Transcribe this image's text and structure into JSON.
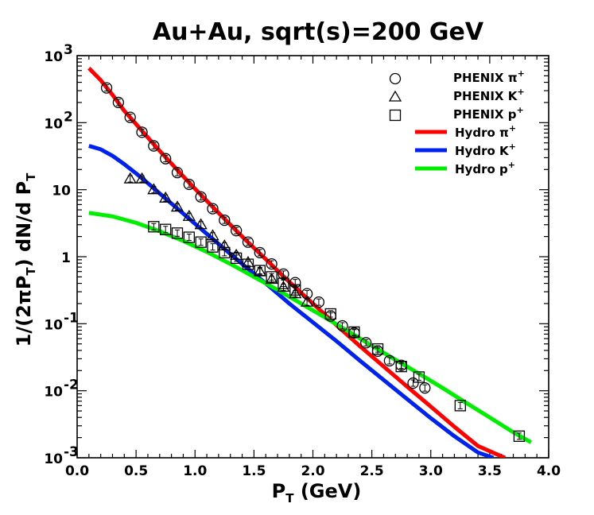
{
  "chart_data": {
    "type": "scatter",
    "title": "Au+Au, sqrt(s)=200 GeV",
    "xlabel": {
      "main": "P",
      "sub": "T",
      "rest": " (GeV)"
    },
    "ylabel": {
      "p1": "1/(2πP",
      "s1": "T",
      "p2": ") dN/d P",
      "s2": "T"
    },
    "xlim": [
      0.0,
      4.0
    ],
    "ylim": [
      0.001,
      1000
    ],
    "yscale": "log",
    "grid": false,
    "legend_position": "top-right",
    "x_ticks": [
      {
        "value": 0.0,
        "label": "0.0"
      },
      {
        "value": 0.5,
        "label": "0.5"
      },
      {
        "value": 1.0,
        "label": "1.0"
      },
      {
        "value": 1.5,
        "label": "1.5"
      },
      {
        "value": 2.0,
        "label": "2.0"
      },
      {
        "value": 2.5,
        "label": "2.5"
      },
      {
        "value": 3.0,
        "label": "3.0"
      },
      {
        "value": 3.5,
        "label": "3.5"
      },
      {
        "value": 4.0,
        "label": "4.0"
      }
    ],
    "y_ticks": [
      {
        "value": 0.001,
        "base": "10",
        "exp": "-3"
      },
      {
        "value": 0.01,
        "base": "10",
        "exp": "-2"
      },
      {
        "value": 0.1,
        "base": "10",
        "exp": "-1"
      },
      {
        "value": 1,
        "base": "1",
        "exp": ""
      },
      {
        "value": 10,
        "base": "10",
        "exp": ""
      },
      {
        "value": 100,
        "base": "10",
        "exp": "2"
      },
      {
        "value": 1000,
        "base": "10",
        "exp": "3"
      }
    ],
    "series": [
      {
        "name": "PHENIX π",
        "sup": "+",
        "kind": "points",
        "marker": "circle",
        "x": [
          0.25,
          0.35,
          0.45,
          0.55,
          0.65,
          0.75,
          0.85,
          0.95,
          1.05,
          1.15,
          1.25,
          1.35,
          1.45,
          1.55,
          1.65,
          1.75,
          1.85,
          1.95,
          2.05,
          2.15,
          2.25,
          2.35,
          2.45,
          2.55,
          2.65,
          2.75,
          2.85,
          2.95
        ],
        "y": [
          330,
          200,
          120,
          72,
          45,
          29,
          18,
          12,
          7.8,
          5.2,
          3.5,
          2.45,
          1.65,
          1.15,
          0.78,
          0.55,
          0.41,
          0.28,
          0.21,
          0.13,
          0.093,
          0.073,
          0.052,
          0.039,
          0.028,
          0.024,
          0.013,
          0.011
        ]
      },
      {
        "name": "PHENIX K",
        "sup": "+",
        "kind": "points",
        "marker": "triangle",
        "x": [
          0.45,
          0.55,
          0.65,
          0.75,
          0.85,
          0.95,
          1.05,
          1.15,
          1.25,
          1.35,
          1.45,
          1.55,
          1.65,
          1.75,
          1.85,
          1.95
        ],
        "y": [
          14.5,
          14.5,
          10.0,
          7.5,
          5.5,
          4.0,
          3.0,
          2.05,
          1.45,
          1.05,
          0.82,
          0.6,
          0.46,
          0.35,
          0.28,
          0.21
        ]
      },
      {
        "name": "PHENIX p",
        "sup": "+",
        "kind": "points",
        "marker": "square",
        "x": [
          0.65,
          0.75,
          0.85,
          0.95,
          1.05,
          1.15,
          1.25,
          1.35,
          1.45,
          1.55,
          1.65,
          1.75,
          1.85,
          2.15,
          2.35,
          2.55,
          2.75,
          2.9,
          3.25,
          3.75
        ],
        "y": [
          2.8,
          2.55,
          2.25,
          1.95,
          1.65,
          1.4,
          1.15,
          0.95,
          0.77,
          0.62,
          0.5,
          0.4,
          0.32,
          0.14,
          0.075,
          0.042,
          0.023,
          0.016,
          0.006,
          0.0021
        ]
      },
      {
        "name": "Hydro π",
        "sup": "+",
        "kind": "line",
        "color": "#ff0000",
        "x": [
          0.1,
          0.2,
          0.3,
          0.4,
          0.5,
          0.6,
          0.7,
          0.8,
          0.9,
          1.0,
          1.1,
          1.2,
          1.3,
          1.4,
          1.5,
          1.6,
          1.7,
          1.8,
          1.9,
          2.0,
          2.2,
          2.4,
          2.6,
          2.8,
          3.0,
          3.2,
          3.4,
          3.6,
          3.63
        ],
        "y": [
          650,
          430,
          260,
          150,
          95,
          60,
          38,
          24.5,
          15.8,
          10.3,
          6.8,
          4.5,
          3.0,
          2.0,
          1.35,
          0.92,
          0.62,
          0.42,
          0.29,
          0.2,
          0.095,
          0.046,
          0.023,
          0.0115,
          0.0058,
          0.0029,
          0.0015,
          0.00105,
          0.001
        ]
      },
      {
        "name": "Hydro K",
        "sup": "+",
        "kind": "line",
        "color": "#0022ee",
        "x": [
          0.1,
          0.2,
          0.3,
          0.4,
          0.5,
          0.6,
          0.7,
          0.8,
          0.9,
          1.0,
          1.2,
          1.4,
          1.6,
          1.8,
          2.0,
          2.2,
          2.4,
          2.6,
          2.8,
          3.0,
          3.2,
          3.4,
          3.53
        ],
        "y": [
          45,
          40,
          32,
          24,
          17.5,
          12.5,
          8.8,
          6.2,
          4.4,
          3.1,
          1.55,
          0.78,
          0.4,
          0.2,
          0.105,
          0.055,
          0.028,
          0.0145,
          0.0075,
          0.0039,
          0.0021,
          0.0012,
          0.001
        ]
      },
      {
        "name": "Hydro p",
        "sup": "+",
        "kind": "line",
        "color": "#00ee00",
        "x": [
          0.1,
          0.3,
          0.5,
          0.7,
          0.9,
          1.1,
          1.3,
          1.5,
          1.7,
          1.9,
          2.1,
          2.3,
          2.5,
          2.7,
          2.9,
          3.1,
          3.3,
          3.5,
          3.7,
          3.85
        ],
        "y": [
          4.5,
          4.0,
          3.2,
          2.4,
          1.72,
          1.18,
          0.78,
          0.5,
          0.32,
          0.2,
          0.125,
          0.077,
          0.047,
          0.029,
          0.018,
          0.011,
          0.0066,
          0.004,
          0.0024,
          0.0017
        ]
      }
    ]
  }
}
